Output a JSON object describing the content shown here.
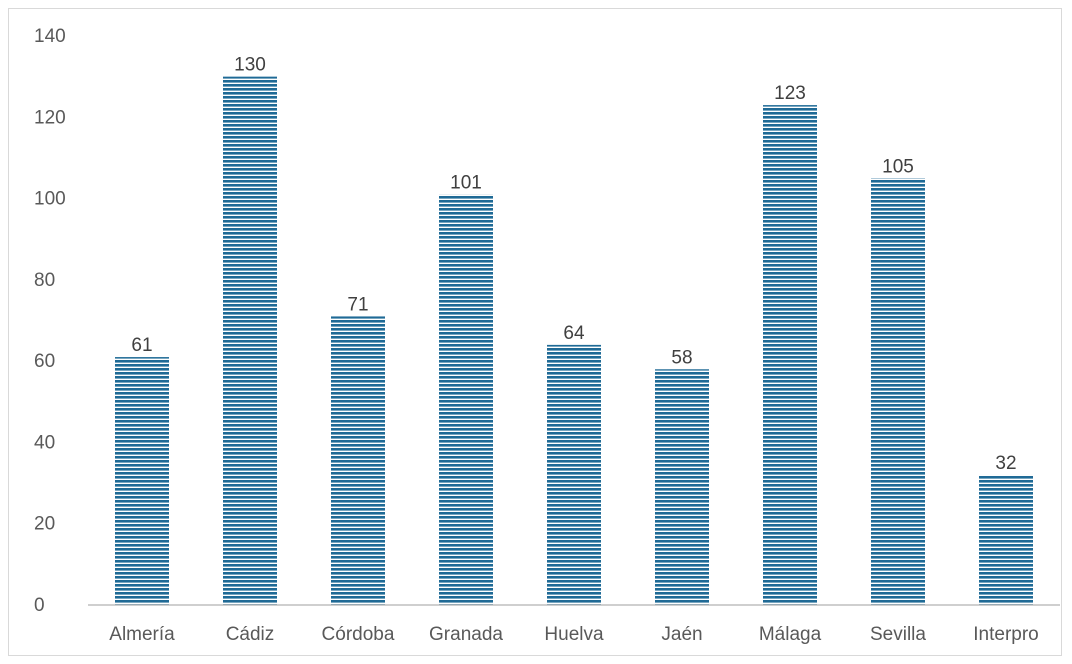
{
  "chart_data": {
    "type": "bar",
    "categories": [
      "Almería",
      "Cádiz",
      "Córdoba",
      "Granada",
      "Huelva",
      "Jaén",
      "Málaga",
      "Sevilla",
      "Interpro"
    ],
    "values": [
      61,
      130,
      71,
      101,
      64,
      58,
      123,
      105,
      32
    ],
    "title": "",
    "xlabel": "",
    "ylabel": "",
    "ylim": [
      0,
      140
    ],
    "yticks": [
      0,
      20,
      40,
      60,
      80,
      100,
      120,
      140
    ],
    "grid": false,
    "legend": "none",
    "data_labels": true,
    "bar_pattern": "horizontal-stripes",
    "colors": {
      "bar_fill": "#1f6a96",
      "bar_stripe": "#ffffff",
      "axis": "#bfbfbf",
      "text": "#595959"
    }
  }
}
